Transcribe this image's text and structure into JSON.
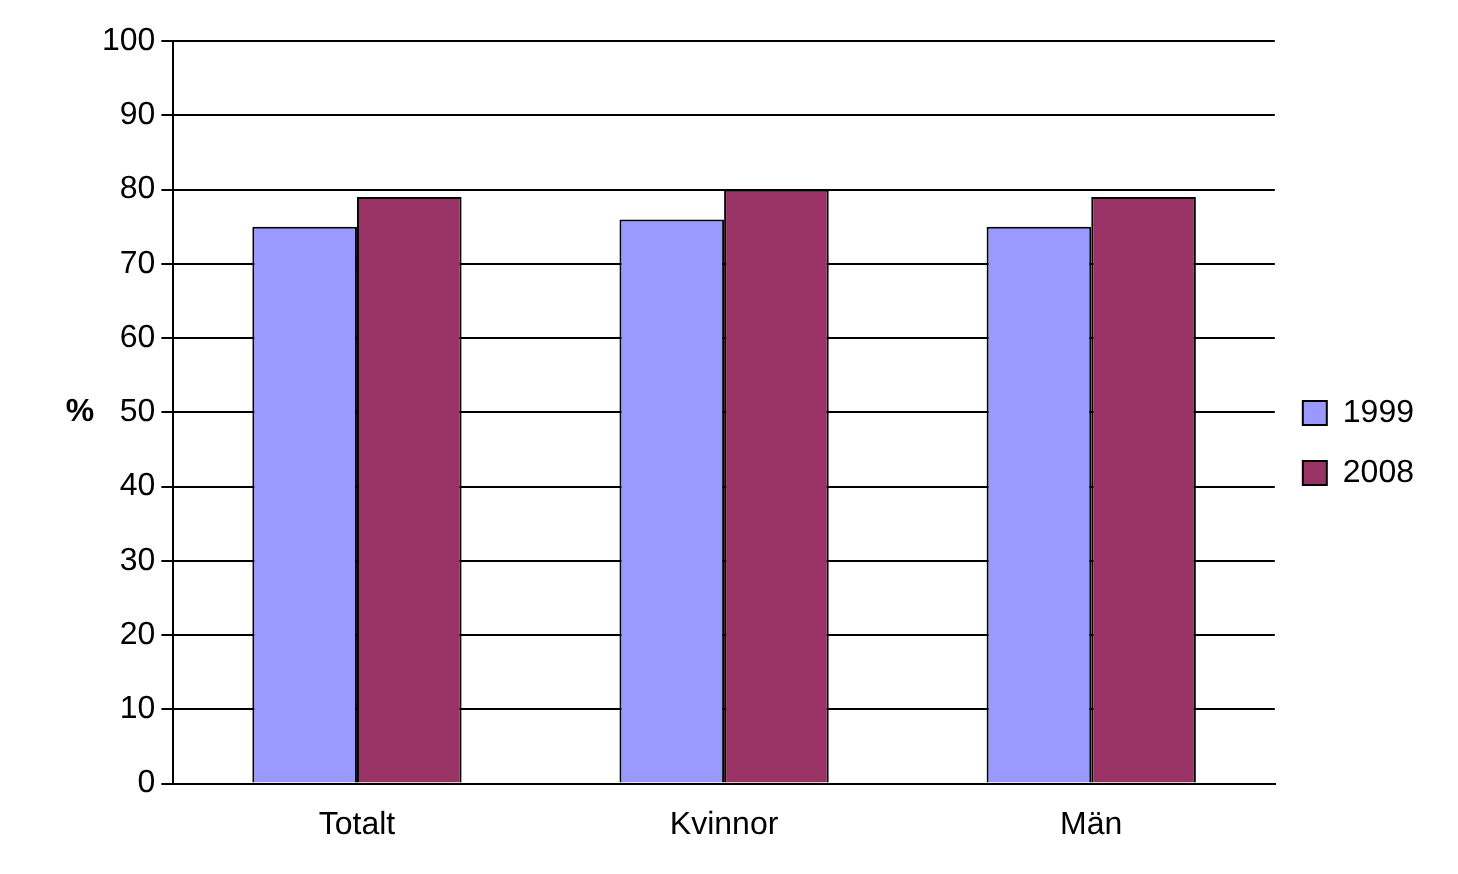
{
  "chart_data": {
    "type": "bar",
    "ylabel": "%",
    "categories": [
      "Totalt",
      "Kvinnor",
      "Män"
    ],
    "series": [
      {
        "name": "1999",
        "color": "#9999ff",
        "values": [
          75,
          76,
          75
        ]
      },
      {
        "name": "2008",
        "color": "#993366",
        "values": [
          79,
          80,
          79
        ]
      }
    ],
    "ylim": [
      0,
      100
    ],
    "yticks": [
      0,
      10,
      20,
      30,
      40,
      50,
      60,
      70,
      80,
      90,
      100
    ],
    "grid": "y",
    "legend": "right"
  }
}
